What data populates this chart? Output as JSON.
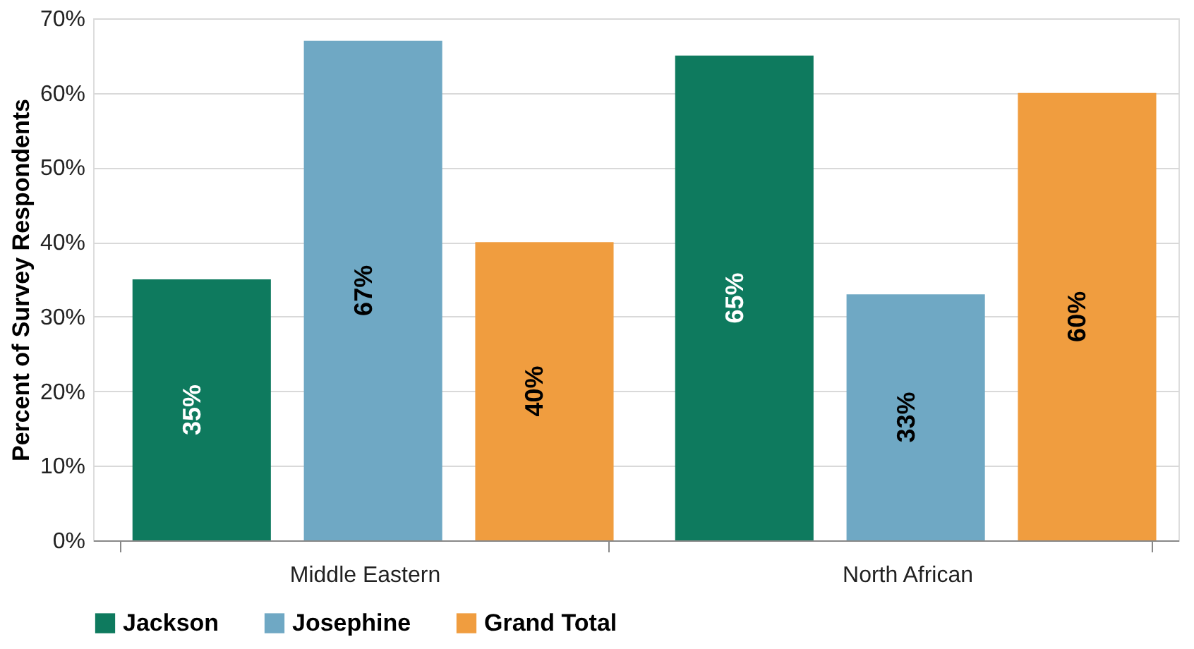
{
  "chart_data": {
    "type": "bar",
    "ylabel": "Percent of Survey Respondents",
    "categories": [
      "Middle Eastern",
      "North African"
    ],
    "series": [
      {
        "name": "Jackson",
        "color": "#0e7a5e",
        "values": [
          35,
          65
        ],
        "value_labels": [
          "35%",
          "65%"
        ]
      },
      {
        "name": "Josephine",
        "color": "#6fa8c4",
        "values": [
          67,
          33
        ],
        "value_labels": [
          "67%",
          "33%"
        ]
      },
      {
        "name": "Grand Total",
        "color": "#f09d3f",
        "values": [
          40,
          60
        ],
        "value_labels": [
          "40%",
          "60%"
        ]
      }
    ],
    "ylim": [
      0,
      70
    ],
    "yticks": [
      {
        "value": 0,
        "label": "0%"
      },
      {
        "value": 10,
        "label": "10%"
      },
      {
        "value": 20,
        "label": "20%"
      },
      {
        "value": 30,
        "label": "30%"
      },
      {
        "value": 40,
        "label": "40%"
      },
      {
        "value": 50,
        "label": "50%"
      },
      {
        "value": 60,
        "label": "60%"
      },
      {
        "value": 70,
        "label": "70%"
      }
    ],
    "grid": "y",
    "legend": "bottom"
  }
}
